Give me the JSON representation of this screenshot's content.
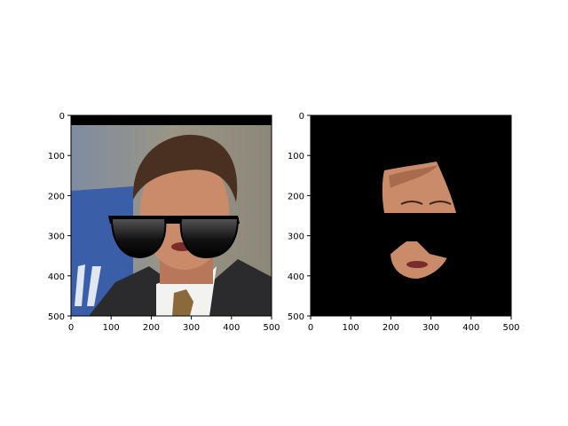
{
  "chart_data": [
    {
      "type": "image",
      "title": "",
      "xlabel": "",
      "ylabel": "",
      "xlim": [
        0,
        500
      ],
      "ylim": [
        500,
        0
      ],
      "xticks": [
        "0",
        "100",
        "200",
        "300",
        "400",
        "500"
      ],
      "yticks": [
        "0",
        "100",
        "200",
        "300",
        "400",
        "500"
      ],
      "image": "portrait of a man in a dark suit and patterned tie wearing black sunglasses, grey-blue background"
    },
    {
      "type": "image",
      "title": "",
      "xlabel": "",
      "ylabel": "",
      "xlim": [
        0,
        500
      ],
      "ylim": [
        500,
        0
      ],
      "xticks": [
        "0",
        "100",
        "200",
        "300",
        "400",
        "500"
      ],
      "yticks": [
        "0",
        "100",
        "200",
        "300",
        "400",
        "500"
      ],
      "image": "segmented face region on black background with the sunglasses area masked out"
    }
  ],
  "colors": {
    "background": "#ffffff",
    "axes": "#000000",
    "mask": "#000000",
    "skin": "#c98b6a",
    "suit": "#2b2b2e",
    "wall": "#8e8a7e",
    "banner": "#3a5ea8",
    "hair": "#4a3020"
  }
}
